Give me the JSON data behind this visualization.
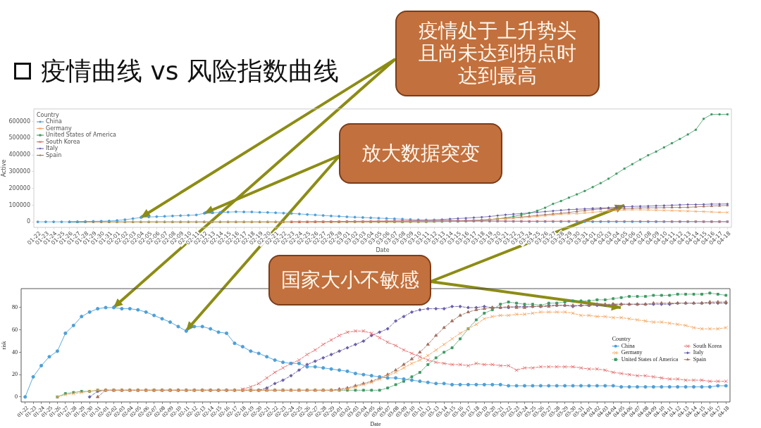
{
  "chart_data": [
    {
      "type": "line",
      "title": "疫情曲线 vs 风险指数曲线",
      "xlabel": "Date",
      "ylabel": "Active",
      "legend_title": "Country",
      "legend": "top left",
      "annotations": [
        {
          "text": "疫情处于上升势头且尚未达到拐点时达到最高",
          "x": "02-04",
          "y": 27000
        },
        {
          "text": "放大数据突变",
          "x": "02-12",
          "y": 52000
        },
        {
          "text": "国家大小不敏感",
          "x": "04-05",
          "y": 100000
        }
      ],
      "categories": [
        "01-22",
        "01-23",
        "01-24",
        "01-25",
        "01-26",
        "01-27",
        "01-28",
        "01-29",
        "01-30",
        "01-31",
        "02-01",
        "02-02",
        "02-03",
        "02-04",
        "02-05",
        "02-06",
        "02-07",
        "02-08",
        "02-09",
        "02-10",
        "02-11",
        "02-12",
        "02-13",
        "02-14",
        "02-15",
        "02-16",
        "02-17",
        "02-18",
        "02-19",
        "02-20",
        "02-21",
        "02-22",
        "02-23",
        "02-24",
        "02-25",
        "02-26",
        "02-27",
        "02-28",
        "02-29",
        "03-01",
        "03-02",
        "03-03",
        "03-04",
        "03-05",
        "03-06",
        "03-07",
        "03-08",
        "03-09",
        "03-10",
        "03-11",
        "03-12",
        "03-13",
        "03-14",
        "03-15",
        "03-16",
        "03-17",
        "03-18",
        "03-19",
        "03-20",
        "03-21",
        "03-22",
        "03-23",
        "03-24",
        "03-25",
        "03-26",
        "03-27",
        "03-28",
        "03-29",
        "03-30",
        "03-31",
        "04-01",
        "04-02",
        "04-03",
        "04-04",
        "04-05",
        "04-06",
        "04-07",
        "04-08",
        "04-09",
        "04-10",
        "04-11",
        "04-12",
        "04-13",
        "04-14",
        "04-15",
        "04-16",
        "04-17",
        "04-18"
      ],
      "ylim": [
        -32000,
        674000
      ],
      "yticks": [
        0,
        100000,
        200000,
        300000,
        400000,
        500000,
        600000
      ],
      "series": [
        {
          "name": "China",
          "color": "#4e9fd6",
          "marker": "circle",
          "values": [
            1000,
            1000,
            1000,
            1000,
            1000,
            2000,
            3000,
            4000,
            5000,
            6000,
            9000,
            14000,
            20000,
            27000,
            30000,
            32000,
            34000,
            36000,
            38000,
            40000,
            42000,
            52000,
            55000,
            57000,
            59000,
            61000,
            60000,
            60000,
            58000,
            57000,
            55000,
            53000,
            51000,
            48000,
            45000,
            42000,
            39000,
            36000,
            34000,
            31000,
            29000,
            27000,
            25000,
            23000,
            21000,
            19000,
            17000,
            15000,
            13000,
            12000,
            11000,
            10000,
            9000,
            8000,
            7000,
            6000,
            6000,
            5000,
            5000,
            4000,
            4000,
            4000,
            3000,
            3000,
            3000,
            3000,
            3000,
            3000,
            3000,
            2000,
            2000,
            2000,
            2000,
            2000,
            2000,
            2000,
            2000,
            2000,
            2000,
            2000,
            2000,
            2000,
            2000,
            2000,
            2000,
            2000,
            2000,
            2000
          ]
        },
        {
          "name": "Germany",
          "color": "#f0a35e",
          "marker": "cross",
          "values": [
            null,
            null,
            null,
            null,
            null,
            null,
            0,
            0,
            0,
            0,
            0,
            0,
            0,
            0,
            0,
            0,
            0,
            0,
            0,
            0,
            0,
            0,
            0,
            0,
            0,
            0,
            0,
            0,
            0,
            0,
            0,
            0,
            0,
            0,
            0,
            0,
            0,
            0,
            0,
            0,
            0,
            0,
            0,
            0,
            0,
            0,
            1000,
            1000,
            1000,
            2000,
            3000,
            4000,
            4000,
            6000,
            7000,
            9000,
            12000,
            15000,
            19000,
            21000,
            24000,
            26000,
            29000,
            33000,
            37000,
            42000,
            47000,
            49000,
            50000,
            54000,
            58000,
            62000,
            66000,
            69000,
            72000,
            73000,
            73000,
            72000,
            70000,
            69000,
            68000,
            66000,
            65000,
            63000,
            62000,
            60000,
            58000,
            57000
          ]
        },
        {
          "name": "United States of America",
          "color": "#3d9a62",
          "marker": "square",
          "values": [
            null,
            null,
            null,
            null,
            0,
            0,
            0,
            0,
            0,
            0,
            0,
            0,
            0,
            0,
            0,
            0,
            0,
            0,
            0,
            0,
            0,
            0,
            0,
            0,
            0,
            0,
            0,
            0,
            0,
            0,
            0,
            0,
            0,
            0,
            0,
            0,
            0,
            0,
            0,
            0,
            0,
            0,
            0,
            0,
            0,
            0,
            0,
            1000,
            1000,
            1000,
            2000,
            2000,
            3000,
            3000,
            4000,
            6000,
            8000,
            13000,
            19000,
            25000,
            33000,
            42000,
            53000,
            67000,
            85000,
            108000,
            125000,
            145000,
            165000,
            185000,
            208000,
            232000,
            258000,
            288000,
            318000,
            345000,
            372000,
            398000,
            420000,
            445000,
            470000,
            495000,
            522000,
            550000,
            615000,
            642000,
            642000,
            642000
          ]
        },
        {
          "name": "South Korea",
          "color": "#e06666",
          "marker": "cross",
          "values": [
            null,
            null,
            null,
            null,
            null,
            null,
            null,
            null,
            null,
            null,
            null,
            null,
            null,
            null,
            null,
            null,
            null,
            null,
            null,
            null,
            null,
            null,
            null,
            null,
            null,
            null,
            null,
            null,
            null,
            null,
            null,
            null,
            1000,
            1000,
            1000,
            2000,
            2000,
            3000,
            3000,
            4000,
            4000,
            5000,
            5000,
            6000,
            6000,
            6000,
            7000,
            7000,
            7000,
            7000,
            7000,
            7000,
            7000,
            7000,
            7000,
            6000,
            6000,
            6000,
            6000,
            6000,
            5000,
            5000,
            5000,
            5000,
            5000,
            5000,
            5000,
            5000,
            5000,
            5000,
            4000,
            4000,
            4000,
            4000,
            4000,
            4000,
            4000,
            4000,
            3000,
            3000,
            3000,
            3000,
            3000,
            3000,
            2000,
            2000,
            2000,
            2000
          ]
        },
        {
          "name": "Italy",
          "color": "#6b5fa8",
          "marker": "diamond",
          "values": [
            null,
            null,
            null,
            null,
            0,
            0,
            0,
            0,
            0,
            0,
            0,
            0,
            0,
            0,
            0,
            0,
            0,
            0,
            0,
            0,
            0,
            0,
            0,
            0,
            0,
            0,
            0,
            0,
            0,
            0,
            0,
            0,
            0,
            0,
            0,
            1000,
            1000,
            1000,
            1000,
            2000,
            2000,
            2000,
            3000,
            3000,
            4000,
            5000,
            6000,
            7000,
            9000,
            11000,
            13000,
            15000,
            18000,
            21000,
            23000,
            26000,
            29000,
            33000,
            38000,
            43000,
            47000,
            50000,
            54000,
            58000,
            62000,
            66000,
            70000,
            74000,
            76000,
            78000,
            81000,
            83000,
            85000,
            88000,
            91000,
            93000,
            94000,
            95000,
            97000,
            98000,
            100000,
            102000,
            104000,
            104000,
            105000,
            107000,
            107000,
            108000
          ]
        },
        {
          "name": "Spain",
          "color": "#a07060",
          "marker": "triangle",
          "values": [
            null,
            null,
            null,
            null,
            0,
            0,
            0,
            0,
            0,
            0,
            0,
            0,
            0,
            0,
            0,
            0,
            0,
            0,
            0,
            0,
            0,
            0,
            0,
            0,
            0,
            0,
            0,
            0,
            0,
            0,
            0,
            0,
            0,
            0,
            0,
            0,
            0,
            0,
            0,
            0,
            0,
            0,
            0,
            0,
            0,
            0,
            0,
            1000,
            1000,
            2000,
            3000,
            5000,
            6000,
            7000,
            9000,
            10000,
            13000,
            15000,
            19000,
            22000,
            25000,
            30000,
            34000,
            39000,
            44000,
            48000,
            52000,
            57000,
            63000,
            68000,
            74000,
            78000,
            81000,
            80000,
            80000,
            82000,
            84000,
            85000,
            85000,
            86000,
            87000,
            87000,
            88000,
            90000,
            93000,
            95000,
            97000,
            99000
          ]
        }
      ]
    },
    {
      "type": "line",
      "xlabel": "Date",
      "ylabel": "risk",
      "legend_title": "Country",
      "legend": "right",
      "categories": [
        "01-22",
        "01-23",
        "01-24",
        "01-25",
        "01-26",
        "01-27",
        "01-28",
        "01-29",
        "01-30",
        "01-31",
        "02-01",
        "02-02",
        "02-03",
        "02-04",
        "02-05",
        "02-06",
        "02-07",
        "02-08",
        "02-09",
        "02-10",
        "02-11",
        "02-12",
        "02-13",
        "02-14",
        "02-15",
        "02-16",
        "02-17",
        "02-18",
        "02-19",
        "02-20",
        "02-21",
        "02-22",
        "02-23",
        "02-24",
        "02-25",
        "02-26",
        "02-27",
        "02-28",
        "02-29",
        "03-01",
        "03-02",
        "03-03",
        "03-04",
        "03-05",
        "03-06",
        "03-07",
        "03-08",
        "03-09",
        "03-10",
        "03-11",
        "03-12",
        "03-13",
        "03-14",
        "03-15",
        "03-16",
        "03-17",
        "03-18",
        "03-19",
        "03-20",
        "03-21",
        "03-22",
        "03-23",
        "03-24",
        "03-25",
        "03-26",
        "03-27",
        "03-28",
        "03-29",
        "03-30",
        "03-31",
        "04-01",
        "04-02",
        "04-03",
        "04-04",
        "04-05",
        "04-06",
        "04-07",
        "04-08",
        "04-09",
        "04-10",
        "04-11",
        "04-12",
        "04-13",
        "04-14",
        "04-15",
        "04-16",
        "04-17",
        "04-18"
      ],
      "ylim": [
        -4.5,
        97
      ],
      "yticks": [
        0,
        20,
        40,
        60,
        80
      ],
      "series": [
        {
          "name": "China",
          "color": "#4e9fd6",
          "marker": "circle",
          "line_style": "solid",
          "values": [
            0,
            18,
            28,
            36,
            41,
            57,
            64,
            72,
            76,
            79,
            80,
            80,
            79,
            79,
            78,
            76,
            73,
            70,
            67,
            63,
            59,
            63,
            63,
            61,
            58,
            57,
            48,
            45,
            41,
            39,
            36,
            33,
            31,
            30,
            30,
            27,
            27,
            26,
            25,
            24,
            23,
            21,
            20,
            19,
            18,
            17,
            17,
            16,
            15,
            14,
            13,
            12,
            12,
            11,
            11,
            11,
            11,
            11,
            11,
            11,
            10,
            10,
            10,
            10,
            10,
            10,
            10,
            10,
            10,
            10,
            10,
            10,
            10,
            10,
            9,
            9,
            9,
            9,
            9,
            9,
            9,
            9,
            9,
            9,
            9,
            9,
            10,
            10
          ]
        },
        {
          "name": "Germany",
          "color": "#f0a35e",
          "marker": "cross",
          "line_style": "dashed",
          "values": [
            null,
            null,
            null,
            null,
            0,
            2,
            3,
            4,
            5,
            6,
            6,
            6,
            6,
            6,
            6,
            6,
            6,
            6,
            6,
            6,
            6,
            6,
            6,
            6,
            6,
            6,
            6,
            6,
            6,
            6,
            6,
            6,
            6,
            6,
            6,
            6,
            6,
            6,
            6,
            6,
            7,
            9,
            11,
            13,
            16,
            19,
            22,
            26,
            30,
            33,
            37,
            42,
            47,
            52,
            57,
            61,
            65,
            70,
            72,
            73,
            73,
            74,
            74,
            75,
            76,
            76,
            76,
            76,
            75,
            73,
            73,
            72,
            72,
            71,
            71,
            70,
            69,
            68,
            67,
            67,
            66,
            65,
            64,
            62,
            61,
            61,
            61,
            62
          ]
        },
        {
          "name": "United States of America",
          "color": "#3d9a62",
          "marker": "square",
          "line_style": "dotted",
          "values": [
            null,
            null,
            null,
            null,
            0,
            3,
            4,
            5,
            5,
            6,
            6,
            6,
            6,
            6,
            6,
            6,
            6,
            6,
            6,
            6,
            6,
            6,
            6,
            6,
            6,
            6,
            6,
            6,
            6,
            6,
            6,
            6,
            6,
            6,
            6,
            6,
            6,
            6,
            6,
            6,
            6,
            6,
            6,
            6,
            6,
            8,
            11,
            14,
            18,
            22,
            29,
            35,
            40,
            44,
            52,
            61,
            69,
            75,
            78,
            83,
            85,
            84,
            83,
            83,
            82,
            84,
            84,
            85,
            86,
            86,
            86,
            87,
            87,
            88,
            89,
            90,
            90,
            90,
            91,
            91,
            91,
            92,
            92,
            92,
            92,
            93,
            92,
            91
          ]
        },
        {
          "name": "South Korea",
          "color": "#e06666",
          "marker": "cross",
          "line_style": "dashed",
          "values": [
            null,
            null,
            null,
            null,
            null,
            null,
            null,
            null,
            null,
            null,
            null,
            null,
            null,
            null,
            null,
            null,
            null,
            null,
            null,
            null,
            null,
            null,
            null,
            null,
            null,
            null,
            null,
            7,
            9,
            12,
            17,
            22,
            26,
            30,
            33,
            38,
            42,
            47,
            51,
            55,
            58,
            59,
            59,
            57,
            53,
            49,
            46,
            42,
            39,
            36,
            33,
            31,
            30,
            29,
            29,
            28,
            30,
            29,
            29,
            28,
            28,
            24,
            26,
            26,
            27,
            27,
            27,
            27,
            27,
            26,
            25,
            25,
            24,
            22,
            21,
            20,
            19,
            19,
            18,
            17,
            16,
            16,
            15,
            15,
            15,
            14,
            14,
            14
          ]
        },
        {
          "name": "Italy",
          "color": "#6b5fa8",
          "marker": "diamond",
          "line_style": "dashed",
          "values": [
            null,
            null,
            null,
            null,
            null,
            null,
            null,
            null,
            0,
            5,
            6,
            6,
            6,
            6,
            6,
            6,
            6,
            6,
            6,
            6,
            6,
            6,
            6,
            6,
            6,
            6,
            6,
            6,
            6,
            6,
            8,
            12,
            15,
            19,
            24,
            29,
            32,
            35,
            38,
            41,
            44,
            47,
            50,
            55,
            58,
            61,
            68,
            72,
            76,
            78,
            79,
            79,
            79,
            81,
            81,
            80,
            80,
            81,
            80,
            80,
            80,
            81,
            81,
            81,
            81,
            82,
            82,
            82,
            81,
            82,
            82,
            82,
            82,
            83,
            83,
            83,
            83,
            83,
            83,
            83,
            83,
            84,
            84,
            84,
            84,
            84,
            84,
            84
          ]
        },
        {
          "name": "Spain",
          "color": "#a07060",
          "marker": "triangle",
          "line_style": "dashed",
          "values": [
            null,
            null,
            null,
            null,
            null,
            null,
            null,
            null,
            null,
            0,
            6,
            6,
            6,
            6,
            6,
            6,
            6,
            6,
            6,
            6,
            6,
            6,
            6,
            6,
            6,
            6,
            6,
            6,
            6,
            6,
            6,
            6,
            6,
            6,
            6,
            6,
            6,
            6,
            6,
            7,
            8,
            10,
            12,
            14,
            17,
            20,
            24,
            29,
            34,
            40,
            47,
            55,
            62,
            68,
            73,
            76,
            78,
            79,
            80,
            80,
            81,
            80,
            80,
            81,
            81,
            81,
            82,
            82,
            82,
            82,
            82,
            83,
            83,
            83,
            83,
            83,
            83,
            83,
            84,
            84,
            84,
            84,
            84,
            84,
            84,
            85,
            85,
            85
          ]
        }
      ]
    }
  ]
}
